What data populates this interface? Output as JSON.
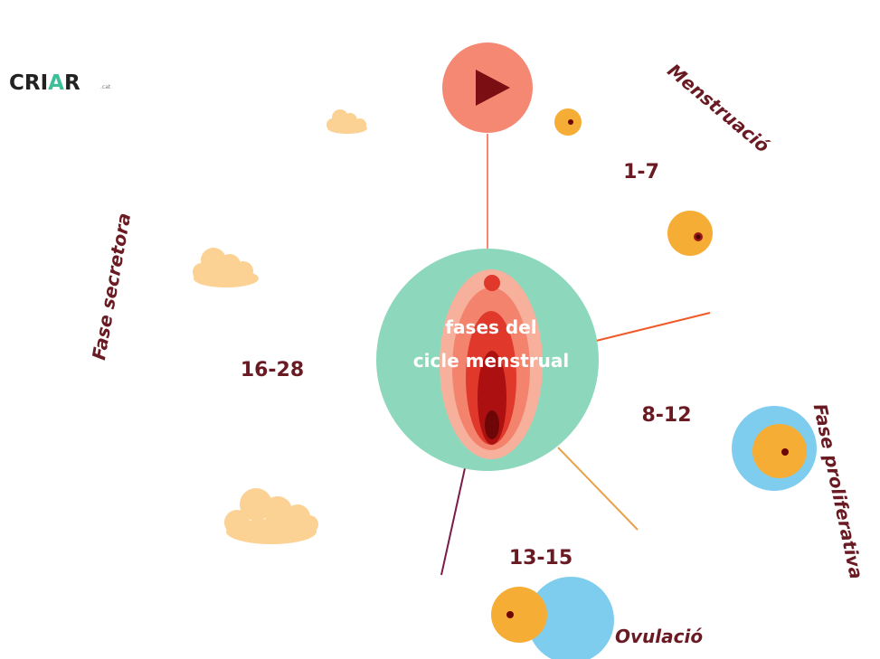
{
  "logo": {
    "text_before": "CRI",
    "text_accent": "A",
    "text_after": "R",
    "suffix": ".cat"
  },
  "center": {
    "line1": "fases del",
    "line2": "cicle menstrual"
  },
  "phases": {
    "menstruation": {
      "name": "Menstruació",
      "days": "1-7"
    },
    "proliferative": {
      "name": "Fase proliferativa",
      "days": "8-12"
    },
    "ovulation": {
      "name": "Ovulació",
      "days": "13-15"
    },
    "secretory": {
      "name": "Fase secretora",
      "days": "16-28"
    }
  },
  "colors": {
    "center_circle": "#8dd8bd",
    "play_button": "#f58873",
    "play_icon": "#7a0e12",
    "follicle": "#f6ad35",
    "follicle_shell": "#7fcdee",
    "cloud": "#fcd194",
    "label": "#6a1a22"
  },
  "icons": {
    "play": "play-icon",
    "vulva": "vulva-illustration",
    "cloud": "cloud-icon",
    "follicle": "follicle-icon"
  }
}
